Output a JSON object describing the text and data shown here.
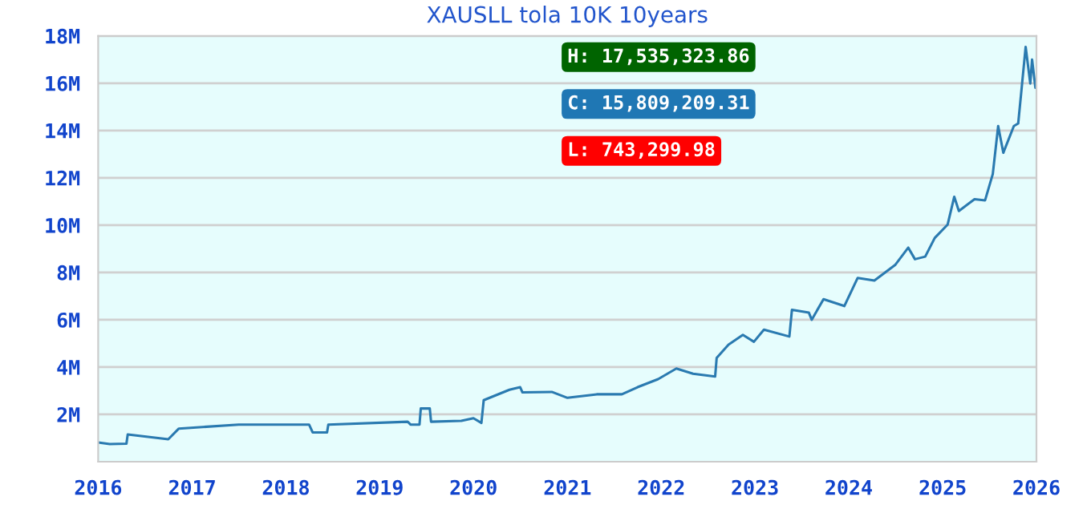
{
  "chart_data": {
    "type": "line",
    "title": "XAUSLL tola 10K 10years",
    "annotations": [
      "H: 17,535,323.86",
      "C: 15,809,209.31",
      "L: 743,299.98"
    ],
    "x": [
      "2016-01-01",
      "2016-02-15",
      "2016-04-20",
      "2016-04-25",
      "2016-09-30",
      "2016-11-10",
      "2017-07-01",
      "2018-04-01",
      "2018-04-15",
      "2018-06-10",
      "2018-06-15",
      "2019-04-20",
      "2019-05-01",
      "2019-06-05",
      "2019-06-10",
      "2019-07-15",
      "2019-07-20",
      "2019-11-15",
      "2020-01-01",
      "2020-02-01",
      "2020-02-10",
      "2020-05-20",
      "2020-07-01",
      "2020-07-10",
      "2020-11-01",
      "2021-01-01",
      "2021-04-25",
      "2021-08-01",
      "2021-10-01",
      "2021-12-20",
      "2022-03-01",
      "2022-05-05",
      "2022-07-30",
      "2022-08-05",
      "2022-09-20",
      "2022-11-15",
      "2022-12-28",
      "2023-02-05",
      "2023-05-15",
      "2023-05-25",
      "2023-07-30",
      "2023-08-10",
      "2023-09-25",
      "2023-12-15",
      "2024-02-05",
      "2024-04-10",
      "2024-07-01",
      "2024-08-20",
      "2024-09-15",
      "2024-10-25",
      "2024-12-01",
      "2025-01-20",
      "2025-02-15",
      "2025-03-05",
      "2025-05-05",
      "2025-06-15",
      "2025-07-15",
      "2025-08-05",
      "2025-08-25",
      "2025-10-05",
      "2025-10-22",
      "2025-11-20",
      "2025-12-08",
      "2025-12-15",
      "2025-12-28"
    ],
    "series": [
      {
        "color": "#2a7ab0",
        "values": [
          810000,
          743299.98,
          760000,
          1150000,
          950000,
          1400000,
          1570000,
          1570000,
          1240000,
          1240000,
          1570000,
          1690000,
          1570000,
          1570000,
          2250000,
          2250000,
          1690000,
          1730000,
          1840000,
          1640000,
          2600000,
          3040000,
          3150000,
          2930000,
          2950000,
          2700000,
          2850000,
          2850000,
          3150000,
          3490000,
          3940000,
          3720000,
          3600000,
          4390000,
          4950000,
          5360000,
          5070000,
          5580000,
          5290000,
          6420000,
          6300000,
          6000000,
          6870000,
          6580000,
          7770000,
          7660000,
          8330000,
          9050000,
          8560000,
          8670000,
          9460000,
          10020000,
          11200000,
          10600000,
          11100000,
          11050000,
          12160000,
          14190000,
          13060000,
          14190000,
          14300000,
          17535323.86,
          15990000,
          17000000,
          15809209.31
        ]
      }
    ],
    "xlim": [
      "2016-01-01",
      "2026-01-01"
    ],
    "xticks": [
      "2016",
      "2017",
      "2018",
      "2019",
      "2020",
      "2021",
      "2022",
      "2023",
      "2024",
      "2025",
      "2026"
    ],
    "ylim": [
      0,
      18000000
    ],
    "yticks": [
      {
        "value": 2000000,
        "label": "2M"
      },
      {
        "value": 4000000,
        "label": "4M"
      },
      {
        "value": 6000000,
        "label": "6M"
      },
      {
        "value": 8000000,
        "label": "8M"
      },
      {
        "value": 10000000,
        "label": "10M"
      },
      {
        "value": 12000000,
        "label": "12M"
      },
      {
        "value": 14000000,
        "label": "14M"
      },
      {
        "value": 16000000,
        "label": "16M"
      },
      {
        "value": 18000000,
        "label": "18M"
      }
    ],
    "grid": "y"
  }
}
